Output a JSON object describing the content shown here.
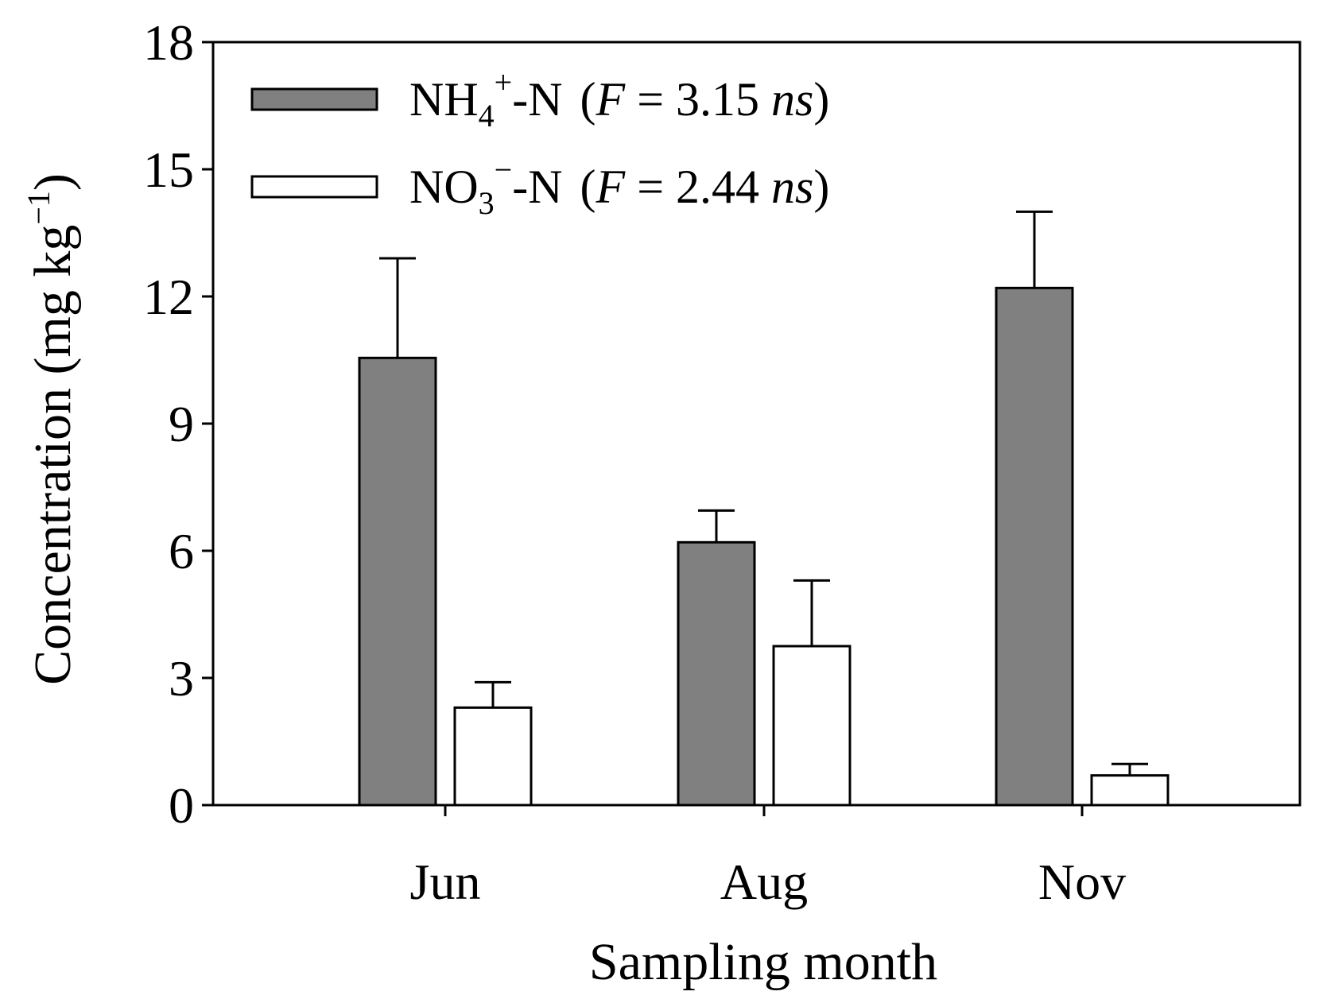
{
  "chart_data": {
    "type": "bar",
    "title": "",
    "xlabel": "Sampling month",
    "ylabel": {
      "main": "Concentration (mg kg",
      "exponent": "−1",
      "close": ")"
    },
    "ylim": [
      0,
      18
    ],
    "yticks": [
      0,
      3,
      6,
      9,
      12,
      15,
      18
    ],
    "grid": false,
    "legend_position": "top-left",
    "categories": [
      "Jun",
      "Aug",
      "Nov"
    ],
    "series": [
      {
        "key": "nh4",
        "legend": {
          "base": "NH",
          "subscript": "4",
          "superscript": "+",
          "suffix": "-N",
          "stat_open": "(",
          "stat_var": "F",
          "stat_value": " = 3.15 ",
          "stat_sig": "ns",
          "stat_close": ")"
        },
        "values": [
          10.55,
          6.2,
          12.2
        ],
        "error_upper": [
          12.9,
          6.95,
          14.0
        ],
        "color": "#808080"
      },
      {
        "key": "no3",
        "legend": {
          "base": "NO",
          "subscript": "3",
          "superscript": "−",
          "suffix": "-N",
          "stat_open": "(",
          "stat_var": "F",
          "stat_value": " = 2.44 ",
          "stat_sig": "ns",
          "stat_close": ")"
        },
        "values": [
          2.3,
          3.75,
          0.7
        ],
        "error_upper": [
          2.9,
          5.3,
          0.97
        ],
        "color": "#ffffff"
      }
    ]
  }
}
